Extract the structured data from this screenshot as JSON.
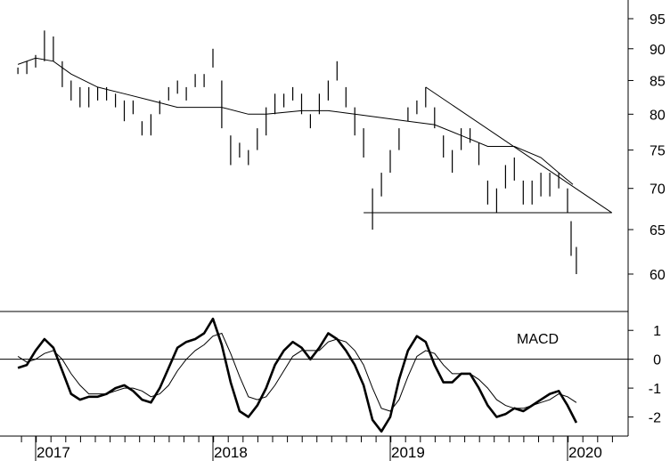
{
  "chart_data": [
    {
      "type": "ohlc",
      "panel": "price",
      "y_scale": "log",
      "ylim": [
        57,
        97
      ],
      "y_ticks": [
        60,
        65,
        70,
        75,
        80,
        85,
        90,
        95
      ],
      "x_ticks": [
        "2017",
        "2018",
        "2019",
        "2020"
      ],
      "x_range": [
        2016.9,
        2020.3
      ],
      "moving_average": [
        [
          2016.9,
          87.5
        ],
        [
          2017.0,
          88.5
        ],
        [
          2017.1,
          88.0
        ],
        [
          2017.2,
          86.0
        ],
        [
          2017.35,
          84.0
        ],
        [
          2017.5,
          83.0
        ],
        [
          2017.65,
          82.0
        ],
        [
          2017.8,
          81.0
        ],
        [
          2017.95,
          81.0
        ],
        [
          2018.05,
          81.0
        ],
        [
          2018.2,
          80.0
        ],
        [
          2018.3,
          80.0
        ],
        [
          2018.5,
          80.5
        ],
        [
          2018.65,
          80.5
        ],
        [
          2018.8,
          80.0
        ],
        [
          2018.95,
          79.5
        ],
        [
          2019.1,
          79.0
        ],
        [
          2019.25,
          78.5
        ],
        [
          2019.4,
          77.0
        ],
        [
          2019.55,
          75.5
        ],
        [
          2019.7,
          75.5
        ],
        [
          2019.85,
          74.0
        ],
        [
          2019.95,
          72.0
        ],
        [
          2020.03,
          70.5
        ]
      ],
      "support_line": {
        "from": [
          2018.85,
          67.0
        ],
        "to": [
          2020.25,
          67.0
        ]
      },
      "resistance_line": {
        "from": [
          2019.2,
          84.0
        ],
        "to": [
          2020.25,
          67.0
        ]
      },
      "weekly_bars": [
        [
          2016.9,
          86,
          87
        ],
        [
          2016.95,
          86,
          88
        ],
        [
          2017.0,
          87,
          89
        ],
        [
          2017.05,
          88,
          93
        ],
        [
          2017.1,
          88,
          92
        ],
        [
          2017.15,
          84,
          88
        ],
        [
          2017.2,
          82,
          85
        ],
        [
          2017.25,
          81,
          84
        ],
        [
          2017.3,
          81,
          84
        ],
        [
          2017.35,
          82,
          84
        ],
        [
          2017.4,
          82,
          84
        ],
        [
          2017.45,
          81,
          83
        ],
        [
          2017.5,
          79,
          82
        ],
        [
          2017.55,
          80,
          82
        ],
        [
          2017.6,
          77,
          79
        ],
        [
          2017.65,
          77,
          80
        ],
        [
          2017.7,
          80,
          82
        ],
        [
          2017.75,
          82,
          84
        ],
        [
          2017.8,
          83,
          85
        ],
        [
          2017.85,
          82,
          84
        ],
        [
          2017.9,
          84,
          86
        ],
        [
          2017.95,
          84,
          86
        ],
        [
          2018.0,
          87,
          90
        ],
        [
          2018.05,
          78,
          85
        ],
        [
          2018.1,
          73,
          77
        ],
        [
          2018.15,
          74,
          76
        ],
        [
          2018.2,
          73,
          75
        ],
        [
          2018.25,
          75,
          78
        ],
        [
          2018.3,
          77,
          81
        ],
        [
          2018.35,
          80,
          83
        ],
        [
          2018.4,
          81,
          83
        ],
        [
          2018.45,
          82,
          84
        ],
        [
          2018.5,
          80,
          83
        ],
        [
          2018.55,
          78,
          80
        ],
        [
          2018.6,
          80,
          83
        ],
        [
          2018.65,
          82,
          85
        ],
        [
          2018.7,
          85,
          88
        ],
        [
          2018.75,
          81,
          84
        ],
        [
          2018.8,
          77,
          81
        ],
        [
          2018.85,
          74,
          78
        ],
        [
          2018.9,
          65,
          70
        ],
        [
          2018.95,
          69,
          72
        ],
        [
          2019.0,
          72,
          75
        ],
        [
          2019.05,
          75,
          78
        ],
        [
          2019.1,
          79,
          81
        ],
        [
          2019.15,
          80,
          82
        ],
        [
          2019.2,
          81,
          84
        ],
        [
          2019.25,
          78,
          81
        ],
        [
          2019.3,
          74,
          77
        ],
        [
          2019.35,
          72,
          75
        ],
        [
          2019.4,
          75,
          78
        ],
        [
          2019.45,
          76,
          78
        ],
        [
          2019.5,
          73,
          76
        ],
        [
          2019.55,
          68,
          71
        ],
        [
          2019.6,
          67,
          70
        ],
        [
          2019.65,
          70,
          73
        ],
        [
          2019.7,
          71,
          74
        ],
        [
          2019.75,
          68,
          71
        ],
        [
          2019.8,
          68,
          71
        ],
        [
          2019.85,
          69,
          72
        ],
        [
          2019.9,
          69,
          72
        ],
        [
          2019.95,
          70,
          72
        ],
        [
          2020.0,
          67,
          70
        ],
        [
          2020.02,
          62,
          66
        ],
        [
          2020.05,
          60,
          63
        ]
      ]
    },
    {
      "type": "line",
      "panel": "macd",
      "title": "MACD",
      "ylim": [
        -2.6,
        1.5
      ],
      "y_ticks": [
        1,
        0,
        -1,
        -2
      ],
      "zero_line": true,
      "series": [
        {
          "role": "macd",
          "x": [
            2016.9,
            2016.95,
            2017.0,
            2017.05,
            2017.1,
            2017.15,
            2017.2,
            2017.25,
            2017.3,
            2017.35,
            2017.4,
            2017.45,
            2017.5,
            2017.55,
            2017.6,
            2017.65,
            2017.7,
            2017.75,
            2017.8,
            2017.85,
            2017.9,
            2017.95,
            2018.0,
            2018.05,
            2018.1,
            2018.15,
            2018.2,
            2018.25,
            2018.3,
            2018.35,
            2018.4,
            2018.45,
            2018.5,
            2018.55,
            2018.6,
            2018.65,
            2018.7,
            2018.75,
            2018.8,
            2018.85,
            2018.9,
            2018.95,
            2019.0,
            2019.05,
            2019.1,
            2019.15,
            2019.2,
            2019.25,
            2019.3,
            2019.35,
            2019.4,
            2019.45,
            2019.5,
            2019.55,
            2019.6,
            2019.65,
            2019.7,
            2019.75,
            2019.8,
            2019.85,
            2019.9,
            2019.95,
            2020.0,
            2020.05
          ],
          "values": [
            -0.3,
            -0.2,
            0.3,
            0.7,
            0.4,
            -0.4,
            -1.2,
            -1.4,
            -1.3,
            -1.3,
            -1.2,
            -1.0,
            -0.9,
            -1.1,
            -1.4,
            -1.5,
            -1.0,
            -0.3,
            0.4,
            0.6,
            0.7,
            0.9,
            1.4,
            0.5,
            -0.8,
            -1.8,
            -2.0,
            -1.6,
            -1.0,
            -0.2,
            0.3,
            0.6,
            0.4,
            0.0,
            0.4,
            0.9,
            0.7,
            0.3,
            -0.2,
            -0.9,
            -2.1,
            -2.5,
            -2.0,
            -0.7,
            0.3,
            0.8,
            0.6,
            -0.2,
            -0.8,
            -0.8,
            -0.5,
            -0.5,
            -1.0,
            -1.6,
            -2.0,
            -1.9,
            -1.7,
            -1.8,
            -1.6,
            -1.4,
            -1.2,
            -1.1,
            -1.6,
            -2.2
          ]
        },
        {
          "role": "signal",
          "x": [
            2016.9,
            2016.95,
            2017.0,
            2017.05,
            2017.1,
            2017.15,
            2017.2,
            2017.25,
            2017.3,
            2017.35,
            2017.4,
            2017.45,
            2017.5,
            2017.55,
            2017.6,
            2017.65,
            2017.7,
            2017.75,
            2017.8,
            2017.85,
            2017.9,
            2017.95,
            2018.0,
            2018.05,
            2018.1,
            2018.15,
            2018.2,
            2018.25,
            2018.3,
            2018.35,
            2018.4,
            2018.45,
            2018.5,
            2018.55,
            2018.6,
            2018.65,
            2018.7,
            2018.75,
            2018.8,
            2018.85,
            2018.9,
            2018.95,
            2019.0,
            2019.05,
            2019.1,
            2019.15,
            2019.2,
            2019.25,
            2019.3,
            2019.35,
            2019.4,
            2019.45,
            2019.5,
            2019.55,
            2019.6,
            2019.65,
            2019.7,
            2019.75,
            2019.8,
            2019.85,
            2019.9,
            2019.95,
            2020.0,
            2020.05
          ],
          "values": [
            0.1,
            -0.1,
            0.0,
            0.2,
            0.3,
            0.0,
            -0.5,
            -0.9,
            -1.2,
            -1.2,
            -1.2,
            -1.1,
            -1.0,
            -1.0,
            -1.1,
            -1.3,
            -1.2,
            -0.9,
            -0.4,
            0.0,
            0.3,
            0.5,
            0.8,
            0.9,
            0.2,
            -0.6,
            -1.3,
            -1.4,
            -1.3,
            -0.9,
            -0.4,
            0.1,
            0.3,
            0.3,
            0.3,
            0.6,
            0.7,
            0.6,
            0.3,
            -0.2,
            -1.0,
            -1.7,
            -1.8,
            -1.4,
            -0.6,
            0.1,
            0.3,
            0.2,
            -0.2,
            -0.5,
            -0.5,
            -0.5,
            -0.7,
            -1.0,
            -1.4,
            -1.6,
            -1.7,
            -1.7,
            -1.6,
            -1.5,
            -1.4,
            -1.2,
            -1.3,
            -1.5
          ]
        }
      ]
    }
  ]
}
